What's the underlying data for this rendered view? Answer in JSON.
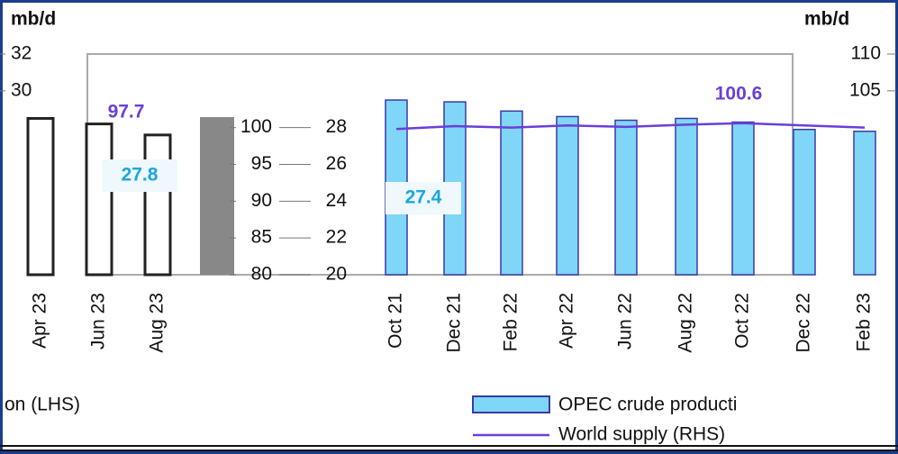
{
  "chart_data": {
    "type": "bar",
    "y_unit": "mb/d",
    "y2_unit": "mb/d",
    "ylim": [
      20,
      32
    ],
    "yticks": [
      32,
      30,
      28,
      26,
      24,
      22,
      20
    ],
    "y2lim": [
      80,
      110
    ],
    "y2ticks": [
      110,
      105,
      100,
      95,
      90,
      85,
      80
    ],
    "left_panel": {
      "categories": [
        "Apr 23",
        "Jun 23",
        "Aug 23"
      ],
      "values": [
        28.5,
        28.2,
        27.6
      ],
      "color": "#222222"
    },
    "categories": [
      "Oct 21",
      "Dec 21",
      "Feb 22",
      "Apr 22",
      "Jun 22",
      "Aug 22",
      "Oct 22",
      "Dec 22",
      "Feb 23"
    ],
    "series": [
      {
        "name": "OPEC crude producti",
        "color": "#7fd6f7",
        "values": [
          29.5,
          29.4,
          28.9,
          28.6,
          28.4,
          28.5,
          28.3,
          27.9,
          27.8
        ]
      },
      {
        "name": "World supply (RHS)",
        "color": "#6a3fd8",
        "axis": "y2",
        "values": [
          99.8,
          100.2,
          100.0,
          100.3,
          100.1,
          100.4,
          100.6,
          100.3,
          100.0
        ]
      }
    ],
    "legend_fragment": "on (LHS)",
    "annotations": [
      {
        "text": "97.7",
        "color": "#6a3fd8"
      },
      {
        "text": "100.6",
        "color": "#6a3fd8"
      },
      {
        "text": "27.8",
        "color": "#1aa6e0"
      },
      {
        "text": "27.4",
        "color": "#1aa6e0"
      }
    ]
  }
}
